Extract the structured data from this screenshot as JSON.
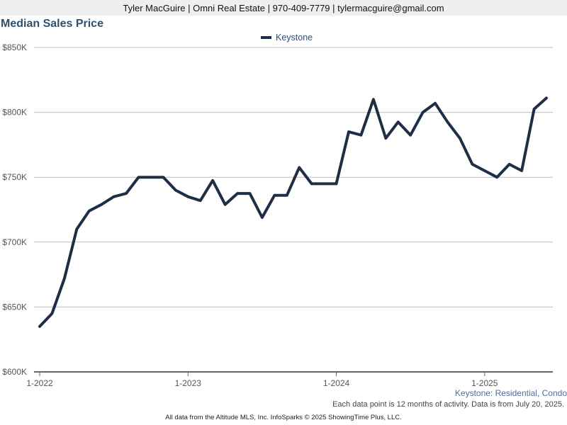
{
  "header": {
    "contact": "Tyler MacGuire | Omni Real Estate | 970-409-7779 | tylermacguire@gmail.com"
  },
  "chart_data": {
    "type": "line",
    "title": "Median Sales Price",
    "xlabel": "",
    "ylabel": "",
    "ylim": [
      600000,
      850000
    ],
    "y_ticks": [
      {
        "value": 600000,
        "label": "$600K"
      },
      {
        "value": 650000,
        "label": "$650K"
      },
      {
        "value": 700000,
        "label": "$700K"
      },
      {
        "value": 750000,
        "label": "$750K"
      },
      {
        "value": 800000,
        "label": "$800K"
      },
      {
        "value": 850000,
        "label": "$850K"
      }
    ],
    "x_ticks": [
      {
        "index": 0,
        "label": "1-2022"
      },
      {
        "index": 12,
        "label": "1-2023"
      },
      {
        "index": 24,
        "label": "1-2024"
      },
      {
        "index": 36,
        "label": "1-2025"
      }
    ],
    "x": [
      "1-2022",
      "2-2022",
      "3-2022",
      "4-2022",
      "5-2022",
      "6-2022",
      "7-2022",
      "8-2022",
      "9-2022",
      "10-2022",
      "11-2022",
      "12-2022",
      "1-2023",
      "2-2023",
      "3-2023",
      "4-2023",
      "5-2023",
      "6-2023",
      "7-2023",
      "8-2023",
      "9-2023",
      "10-2023",
      "11-2023",
      "12-2023",
      "1-2024",
      "2-2024",
      "3-2024",
      "4-2024",
      "5-2024",
      "6-2024",
      "7-2024",
      "8-2024",
      "9-2024",
      "10-2024",
      "11-2024",
      "12-2024",
      "1-2025",
      "2-2025",
      "3-2025",
      "4-2025",
      "5-2025",
      "6-2025"
    ],
    "grid": true,
    "legend_position": "top-center",
    "series": [
      {
        "name": "Keystone",
        "color": "#1e2f45",
        "values": [
          635000,
          645000,
          672000,
          710000,
          724000,
          729000,
          735000,
          737500,
          750000,
          750000,
          750000,
          740000,
          735000,
          732000,
          747500,
          729000,
          737500,
          737500,
          719000,
          736000,
          736000,
          757500,
          745000,
          745000,
          745000,
          785000,
          782500,
          810000,
          780000,
          792500,
          782500,
          800000,
          807000,
          792500,
          780000,
          760000,
          755000,
          750000,
          760000,
          755000,
          802500,
          811000
        ]
      }
    ]
  },
  "footer": {
    "subtitle": "Keystone: Residential, Condo",
    "note": "Each data point is 12 months of activity. Data is from July 20, 2025.",
    "source": "All data from the Altitude MLS, Inc. InfoSparks © 2025 ShowingTime Plus, LLC."
  }
}
